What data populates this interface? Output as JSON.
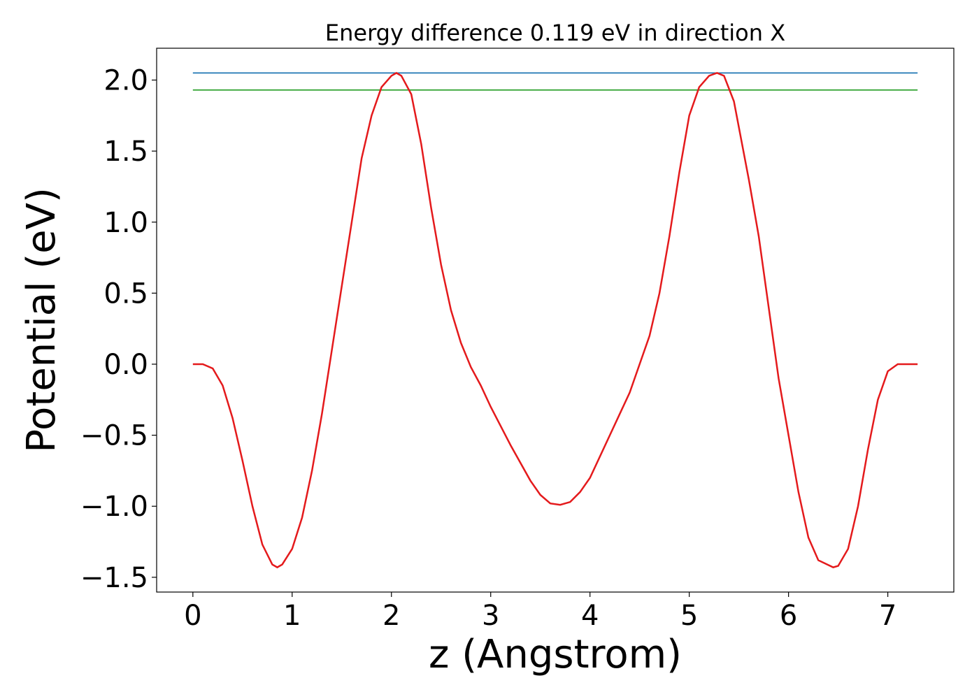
{
  "chart_data": {
    "type": "line",
    "title": "Energy difference 0.119 eV in direction X",
    "xlabel": "z (Angstrom)",
    "ylabel": "Potential (eV)",
    "xlim": [
      -0.365,
      7.665
    ],
    "ylim": [
      -1.604,
      2.224
    ],
    "xticks": [
      0,
      1,
      2,
      3,
      4,
      5,
      6,
      7
    ],
    "yticks": [
      {
        "value": -1.5,
        "label": "−1.5"
      },
      {
        "value": -1.0,
        "label": "−1.0"
      },
      {
        "value": -0.5,
        "label": "−0.5"
      },
      {
        "value": 0,
        "label": "0.0"
      },
      0.5,
      {
        "value": 1.0,
        "label": "1.0"
      },
      1.5,
      {
        "value": 2.0,
        "label": "2.0"
      }
    ],
    "grid": false,
    "series": [
      {
        "color": "#1f77b4",
        "x": [
          0,
          7.3
        ],
        "values": [
          2.05,
          2.05
        ]
      },
      {
        "color": "#2ca02c",
        "x": [
          0,
          7.3
        ],
        "values": [
          1.93,
          1.93
        ]
      },
      {
        "color": "#e41a1c",
        "x": [
          0,
          0.1,
          0.2,
          0.3,
          0.4,
          0.5,
          0.6,
          0.7,
          0.8,
          0.85,
          0.9,
          1.0,
          1.1,
          1.2,
          1.3,
          1.4,
          1.5,
          1.6,
          1.7,
          1.8,
          1.9,
          2.0,
          2.05,
          2.1,
          2.2,
          2.3,
          2.4,
          2.5,
          2.6,
          2.7,
          2.8,
          2.9,
          3.0,
          3.2,
          3.4,
          3.5,
          3.6,
          3.7,
          3.8,
          3.9,
          4.0,
          4.2,
          4.4,
          4.6,
          4.7,
          4.8,
          4.9,
          5.0,
          5.1,
          5.2,
          5.28,
          5.35,
          5.45,
          5.6,
          5.7,
          5.8,
          5.9,
          6.0,
          6.1,
          6.2,
          6.3,
          6.45,
          6.5,
          6.6,
          6.7,
          6.8,
          6.9,
          7.0,
          7.1,
          7.2,
          7.3
        ],
        "values": [
          0.0,
          0.0,
          -0.03,
          -0.15,
          -0.38,
          -0.68,
          -1.0,
          -1.27,
          -1.41,
          -1.43,
          -1.41,
          -1.3,
          -1.08,
          -0.75,
          -0.35,
          0.1,
          0.55,
          1.0,
          1.45,
          1.75,
          1.95,
          2.03,
          2.05,
          2.03,
          1.9,
          1.55,
          1.1,
          0.7,
          0.38,
          0.15,
          -0.02,
          -0.15,
          -0.3,
          -0.57,
          -0.82,
          -0.92,
          -0.98,
          -0.99,
          -0.97,
          -0.9,
          -0.8,
          -0.5,
          -0.2,
          0.2,
          0.5,
          0.9,
          1.35,
          1.75,
          1.95,
          2.03,
          2.05,
          2.03,
          1.85,
          1.3,
          0.9,
          0.4,
          -0.1,
          -0.5,
          -0.9,
          -1.22,
          -1.38,
          -1.43,
          -1.42,
          -1.3,
          -1.0,
          -0.6,
          -0.25,
          -0.05,
          0.0,
          0.0,
          0.0
        ]
      }
    ]
  }
}
